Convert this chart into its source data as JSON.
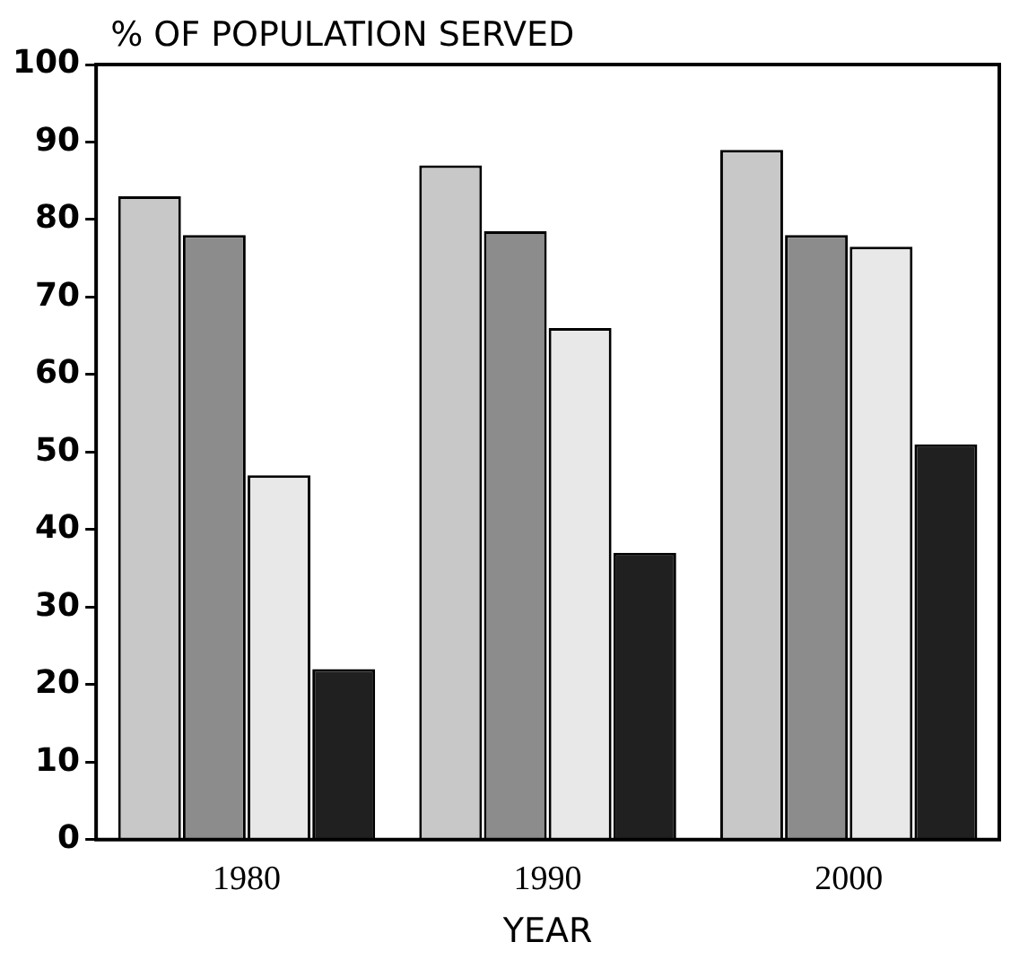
{
  "chart_data": {
    "type": "bar",
    "ylabel": "% OF POPULATION SERVED",
    "xlabel": "YEAR",
    "categories": [
      "1980",
      "1990",
      "2000"
    ],
    "series": [
      {
        "color": "#c8c8c8",
        "values": [
          83,
          87,
          89
        ]
      },
      {
        "color": "#8c8c8c",
        "values": [
          78,
          78.5,
          78
        ]
      },
      {
        "color": "#e8e8e8",
        "values": [
          47,
          66,
          76.5
        ]
      },
      {
        "color": "#202020",
        "values": [
          22,
          37,
          51
        ]
      }
    ],
    "ylim": [
      0,
      100
    ],
    "yticks": [
      0,
      10,
      20,
      30,
      40,
      50,
      60,
      70,
      80,
      90,
      100
    ],
    "grid": false,
    "legend": false
  }
}
